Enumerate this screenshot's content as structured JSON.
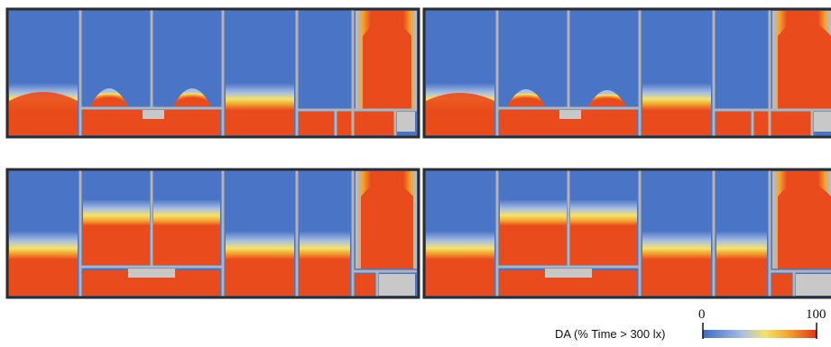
{
  "figure": {
    "panels": [
      {
        "name": "top-left"
      },
      {
        "name": "top-right"
      },
      {
        "name": "bottom-left"
      },
      {
        "name": "bottom-right"
      }
    ],
    "colors": {
      "low": "#4a74c6",
      "mid_low": "#a9bfe4",
      "mid": "#f3e36b",
      "mid_high": "#f2a52f",
      "high": "#ea4b1c",
      "wall": "#b4b4b4",
      "wall_dark": "#2c2c2c",
      "core": "#c8c8c8"
    }
  },
  "legend": {
    "label": "DA (% Time > 300 lx)",
    "min_label": "0",
    "max_label": "100"
  }
}
